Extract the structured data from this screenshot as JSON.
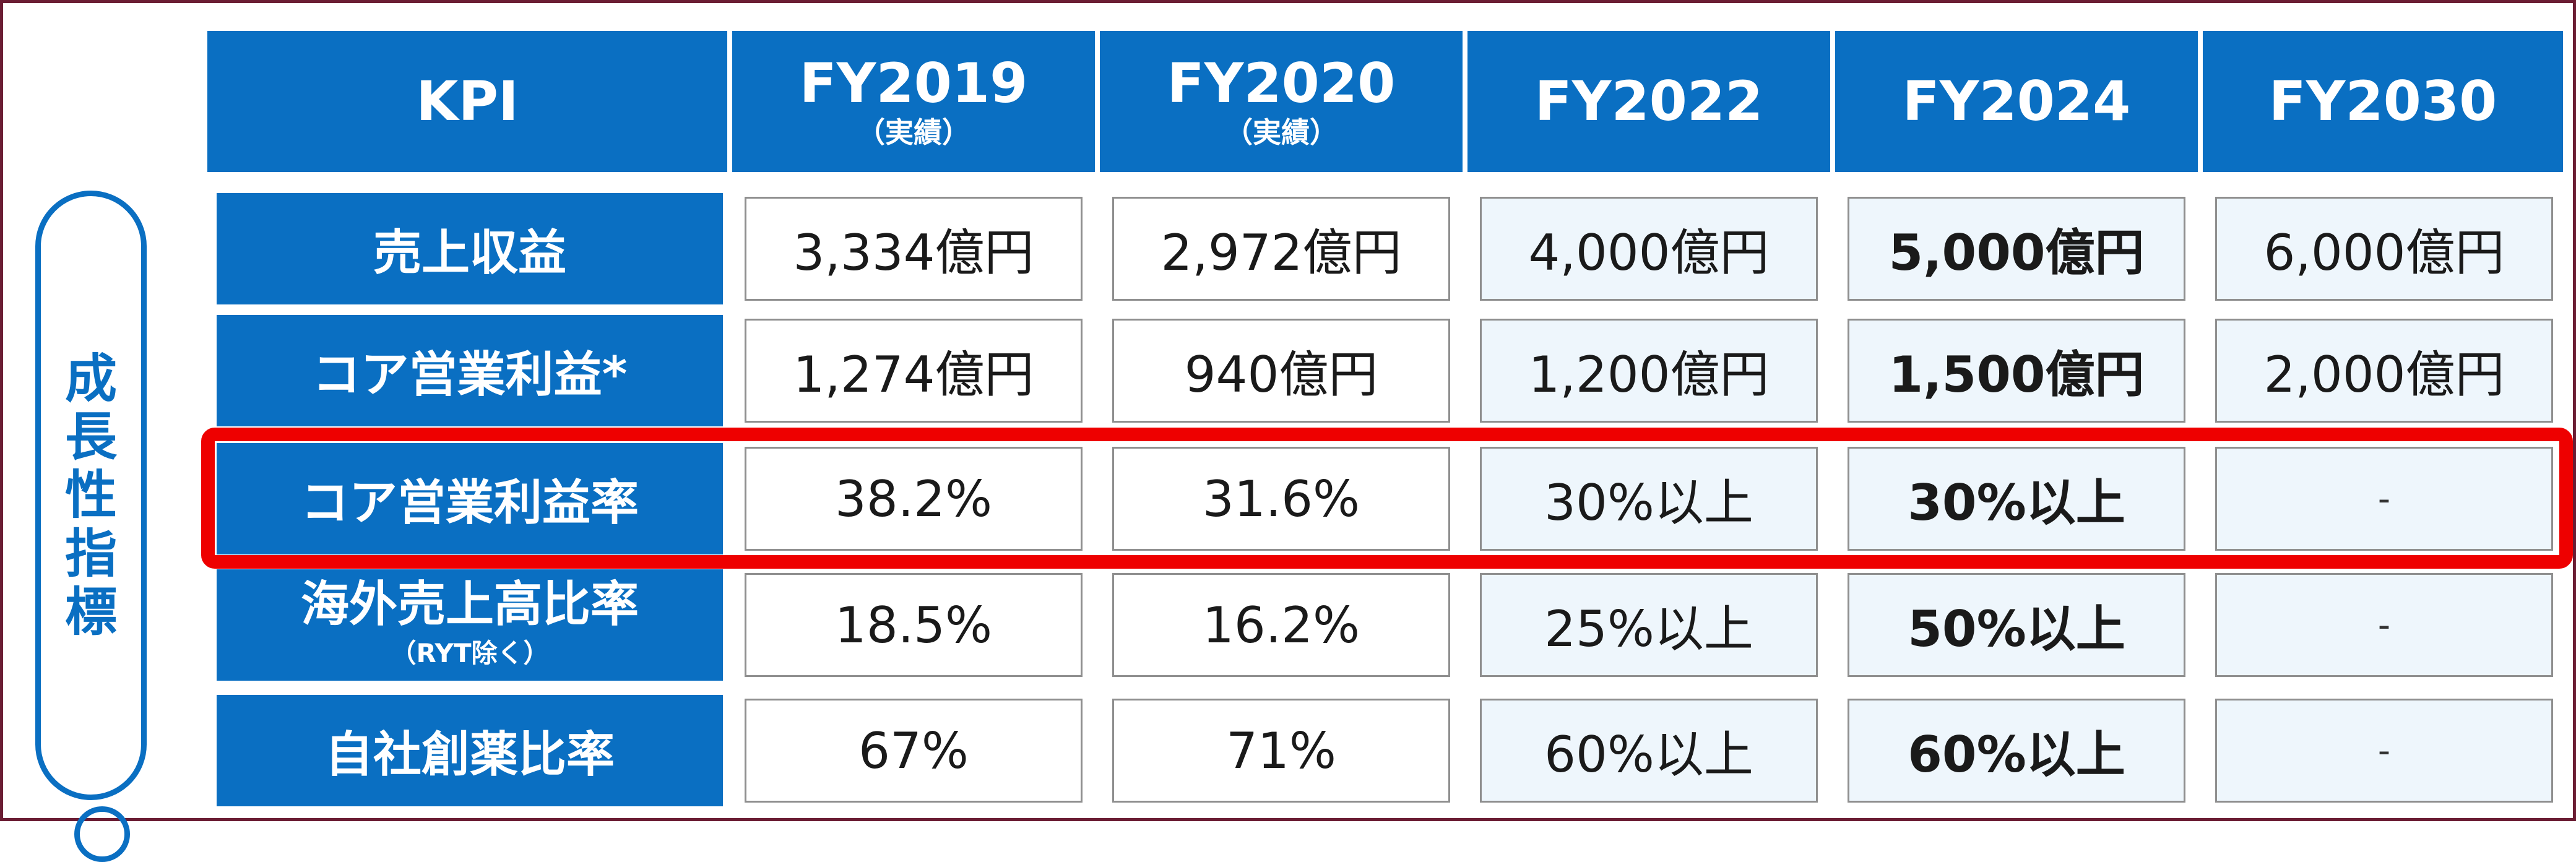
{
  "header": {
    "kpi": "KPI",
    "cols": [
      {
        "year": "FY2019",
        "note": "（実績）"
      },
      {
        "year": "FY2020",
        "note": "（実績）"
      },
      {
        "year": "FY2022",
        "note": ""
      },
      {
        "year": "FY2024",
        "note": ""
      },
      {
        "year": "FY2030",
        "note": ""
      }
    ]
  },
  "side_label": [
    "成",
    "長",
    "性",
    "指",
    "標"
  ],
  "rows": [
    {
      "label": "売上収益",
      "sub": "",
      "values": [
        "3,334億円",
        "2,972億円",
        "4,000億円",
        "5,000億円",
        "6,000億円"
      ]
    },
    {
      "label": "コア営業利益*",
      "sub": "",
      "values": [
        "1,274億円",
        "940億円",
        "1,200億円",
        "1,500億円",
        "2,000億円"
      ]
    },
    {
      "label": "コア営業利益率",
      "sub": "",
      "values": [
        "38.2%",
        "31.6%",
        "30%以上",
        "30%以上",
        "-"
      ]
    },
    {
      "label": "海外売上高比率",
      "sub": "（RYT除く）",
      "values": [
        "18.5%",
        "16.2%",
        "25%以上",
        "50%以上",
        "-"
      ]
    },
    {
      "label": "自社創薬比率",
      "sub": "",
      "values": [
        "67%",
        "71%",
        "60%以上",
        "60%以上",
        "-"
      ]
    }
  ],
  "highlighted_row": "コア営業利益率",
  "colors": {
    "brand_blue": "#0a6fc2",
    "highlight_red": "#ee0000",
    "plan_fill": "#eef6fc",
    "frame": "#6b1d34"
  }
}
